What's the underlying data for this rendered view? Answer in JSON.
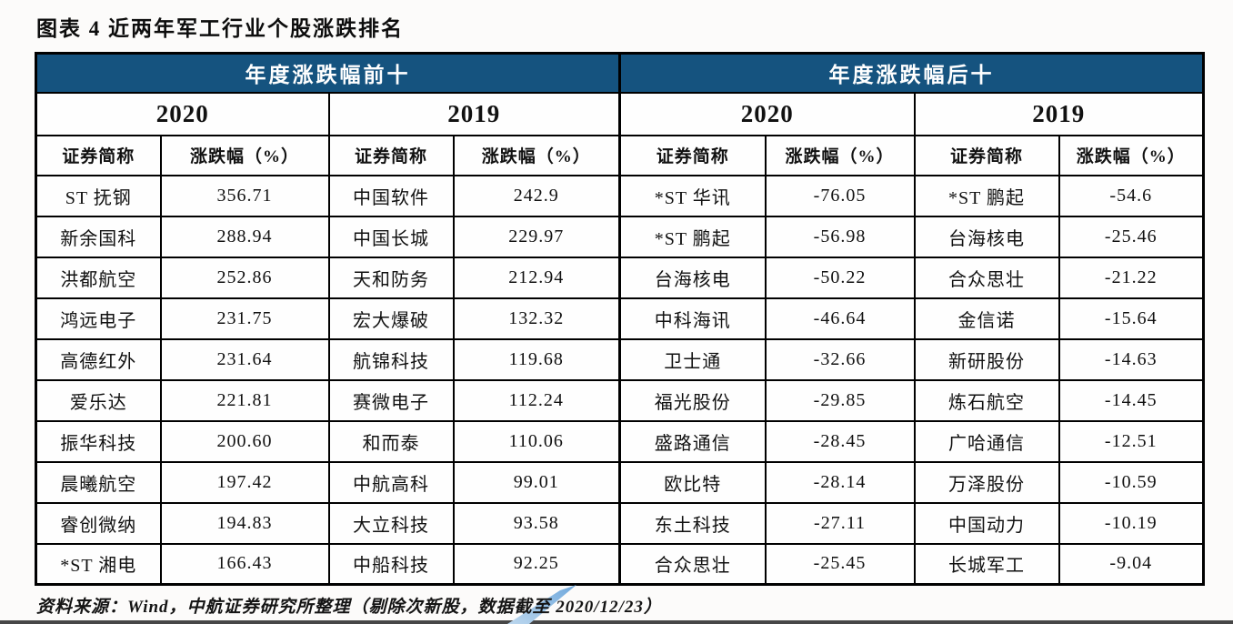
{
  "page": {
    "title": "图表 4 近两年军工行业个股涨跌排名",
    "source_note": "资料来源：Wind，中航证券研究所整理（剔除次新股，数据截至 2020/12/23）"
  },
  "colors": {
    "header_bg": "#15537F",
    "header_text": "#FFFFFF",
    "table_border": "#000000",
    "swoosh_light": "#BCD7EE",
    "swoosh_dark": "#6FA8DC",
    "bottom_rule": "#474747"
  },
  "table": {
    "group_headers": [
      "年度涨跌幅前十",
      "年度涨跌幅后十"
    ],
    "year_headers": [
      "2020",
      "2019",
      "2020",
      "2019"
    ],
    "column_headers": [
      "证券简称",
      "涨跌幅（%）",
      "证券简称",
      "涨跌幅（%）",
      "证券简称",
      "涨跌幅（%）",
      "证券简称",
      "涨跌幅（%）"
    ],
    "rows": [
      [
        "ST 抚钢",
        "356.71",
        "中国软件",
        "242.9",
        "*ST 华讯",
        "-76.05",
        "*ST 鹏起",
        "-54.6"
      ],
      [
        "新余国科",
        "288.94",
        "中国长城",
        "229.97",
        "*ST 鹏起",
        "-56.98",
        "台海核电",
        "-25.46"
      ],
      [
        "洪都航空",
        "252.86",
        "天和防务",
        "212.94",
        "台海核电",
        "-50.22",
        "合众思壮",
        "-21.22"
      ],
      [
        "鸿远电子",
        "231.75",
        "宏大爆破",
        "132.32",
        "中科海讯",
        "-46.64",
        "金信诺",
        "-15.64"
      ],
      [
        "高德红外",
        "231.64",
        "航锦科技",
        "119.68",
        "卫士通",
        "-32.66",
        "新研股份",
        "-14.63"
      ],
      [
        "爱乐达",
        "221.81",
        "赛微电子",
        "112.24",
        "福光股份",
        "-29.85",
        "炼石航空",
        "-14.45"
      ],
      [
        "振华科技",
        "200.60",
        "和而泰",
        "110.06",
        "盛路通信",
        "-28.45",
        "广哈通信",
        "-12.51"
      ],
      [
        "晨曦航空",
        "197.42",
        "中航高科",
        "99.01",
        "欧比特",
        "-28.14",
        "万泽股份",
        "-10.59"
      ],
      [
        "睿创微纳",
        "194.83",
        "大立科技",
        "93.58",
        "东土科技",
        "-27.11",
        "中国动力",
        "-10.19"
      ],
      [
        "*ST 湘电",
        "166.43",
        "中船科技",
        "92.25",
        "合众思壮",
        "-25.45",
        "长城军工",
        "-9.04"
      ]
    ]
  }
}
